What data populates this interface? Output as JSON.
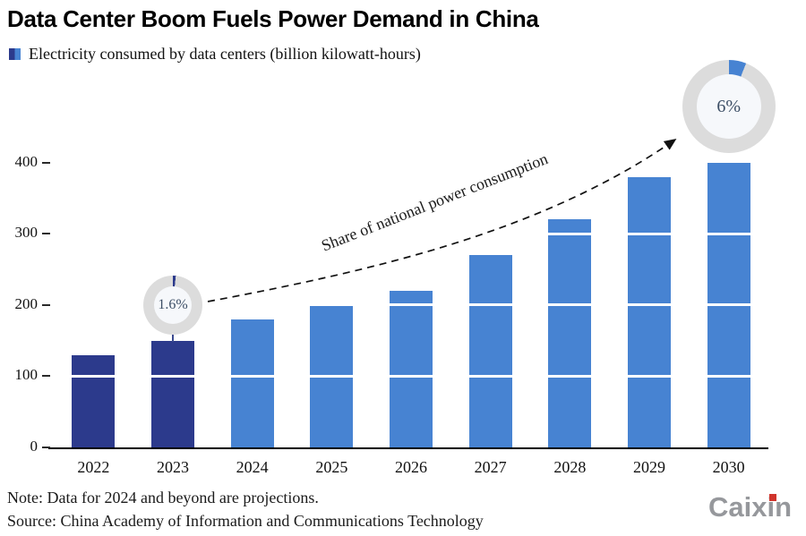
{
  "title": "Data Center Boom Fuels Power Demand in China",
  "legend": {
    "label": "Electricity consumed by data centers (billion kilowatt-hours)"
  },
  "chart_data": {
    "type": "bar",
    "title": "Data Center Boom Fuels Power Demand in China",
    "series_label": "Electricity consumed by data centers (billion kilowatt-hours)",
    "categories": [
      "2022",
      "2023",
      "2024",
      "2025",
      "2026",
      "2027",
      "2028",
      "2029",
      "2030"
    ],
    "values": [
      130,
      150,
      180,
      200,
      220,
      270,
      320,
      380,
      400
    ],
    "bar_colors": [
      "#2c3a8c",
      "#2c3a8c",
      "#4783d2",
      "#4783d2",
      "#4783d2",
      "#4783d2",
      "#4783d2",
      "#4783d2",
      "#4783d2"
    ],
    "projection_note": "Values for 2024 and beyond are projections (lighter blue bars)",
    "xlabel": "",
    "ylabel": "billion kilowatt-hours",
    "ylim": [
      0,
      440
    ],
    "yticks": [
      400,
      300,
      200,
      100,
      0
    ],
    "gridlines": [
      100,
      200,
      300
    ],
    "legend_position": "top-left",
    "annotations": {
      "arrow_label": "Share of national power consumption",
      "donuts": [
        {
          "label": "1.6%",
          "value_pct": 1.6,
          "category": "2023",
          "wedge_color": "#2c3a8c"
        },
        {
          "label": "6%",
          "value_pct": 6,
          "category": "2030",
          "wedge_color": "#4783d2"
        }
      ]
    }
  },
  "notes": {
    "note": "Note: Data for 2024 and beyond are projections.",
    "source": "Source: China Academy of Information and Communications Technology"
  },
  "logo": {
    "text": "Caixin",
    "dot_color": "#d0342c"
  },
  "colors": {
    "navy": "#2c3a8c",
    "blue": "#4783d2",
    "donut_ring": "#dcdcdc",
    "axis": "#000000"
  }
}
